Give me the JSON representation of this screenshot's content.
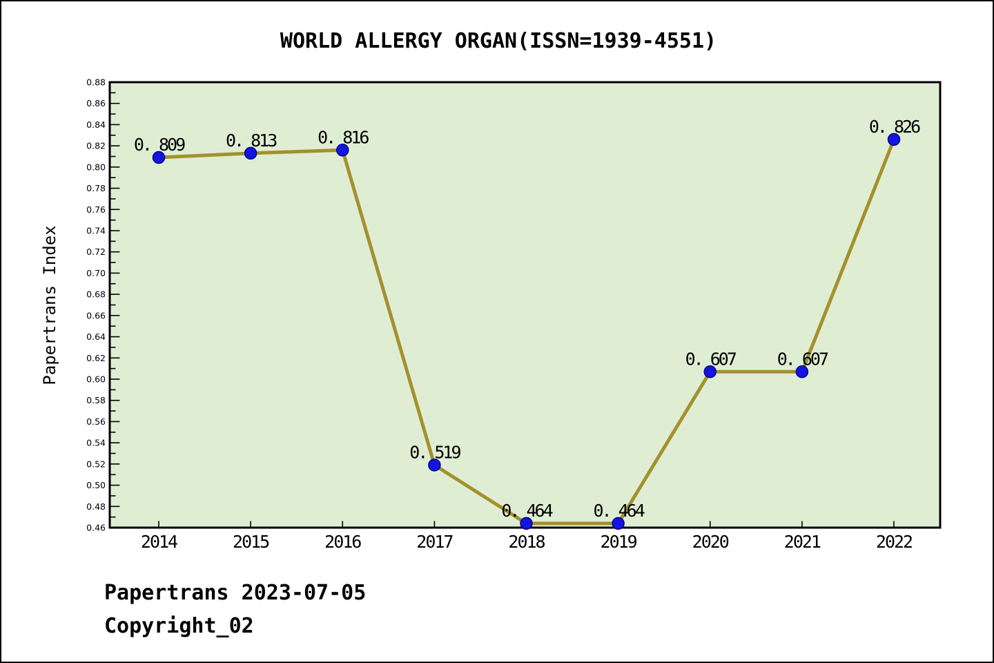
{
  "title": "WORLD ALLERGY ORGAN(ISSN=1939-4551)",
  "footer": {
    "line1": "Papertrans 2023-07-05",
    "line2": "Copyright_02"
  },
  "chart_data": {
    "type": "line",
    "title": "WORLD ALLERGY ORGAN(ISSN=1939-4551)",
    "xlabel": "",
    "ylabel": "Papertrans Index",
    "x": [
      2014,
      2015,
      2016,
      2017,
      2018,
      2019,
      2020,
      2021,
      2022
    ],
    "values": [
      0.809,
      0.813,
      0.816,
      0.519,
      0.464,
      0.464,
      0.607,
      0.607,
      0.826
    ],
    "point_labels": [
      "0. 809",
      "0. 813",
      "0. 816",
      "0. 519",
      "0. 464",
      "0. 464",
      "0. 607",
      "0. 607",
      "0. 826"
    ],
    "ylim": [
      0.46,
      0.88
    ],
    "ytick_step": 0.02,
    "yminor_step": 0.01,
    "grid": false,
    "legend": null,
    "colors": {
      "plot_bg": "#dfeed3",
      "line": "#a3912d",
      "marker": "#1515e0",
      "marker_edge": "#00008b",
      "frame": "#000000",
      "text": "#000000"
    }
  }
}
